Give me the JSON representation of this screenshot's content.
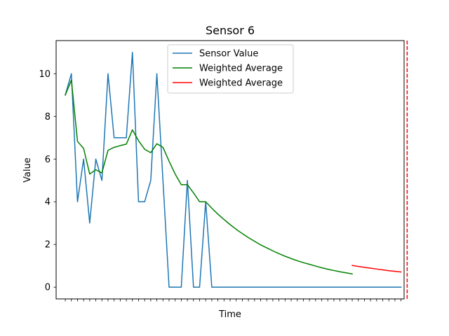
{
  "chart_data": {
    "type": "line",
    "title": "Sensor 6",
    "xlabel": "Time",
    "ylabel": "Value",
    "xlim": [
      -1.5,
      55.5
    ],
    "ylim": [
      -0.55,
      11.55
    ],
    "yticks": [
      0,
      2,
      4,
      6,
      8,
      10
    ],
    "xtick_count": 56,
    "grid": false,
    "legend_position": "top-center",
    "series": [
      {
        "name": "Sensor Value",
        "color": "#1f77b4",
        "x": [
          0,
          1,
          2,
          3,
          4,
          5,
          6,
          7,
          8,
          9,
          10,
          11,
          12,
          13,
          14,
          15,
          16,
          17,
          18,
          19,
          20,
          21,
          22,
          23,
          24,
          25,
          26,
          27,
          28,
          29,
          30,
          31,
          32,
          33,
          34,
          35,
          36,
          37,
          38,
          39,
          40,
          41,
          42,
          43,
          44,
          45,
          46,
          47,
          48,
          49,
          50,
          51,
          52,
          53,
          54,
          55
        ],
        "values": [
          9,
          10,
          4,
          6,
          3,
          6,
          5,
          10,
          7,
          7,
          7,
          11,
          4,
          4,
          5,
          10,
          5,
          0,
          0,
          0,
          5,
          0,
          0,
          4,
          0,
          0,
          0,
          0,
          0,
          0,
          0,
          0,
          0,
          0,
          0,
          0,
          0,
          0,
          0,
          0,
          0,
          0,
          0,
          0,
          0,
          0,
          0,
          0,
          0,
          0,
          0,
          0,
          0,
          0,
          0,
          0
        ]
      },
      {
        "name": "Weighted Average",
        "color": "#008000",
        "x": [
          0,
          1,
          2,
          3,
          4,
          5,
          6,
          7,
          8,
          9,
          10,
          11,
          12,
          13,
          14,
          15,
          16,
          17,
          18,
          19,
          20,
          21,
          22,
          23,
          24,
          25,
          26,
          27,
          28,
          29,
          30,
          31,
          32,
          33,
          34,
          35,
          36,
          37,
          38,
          39,
          40,
          41,
          42,
          43,
          44,
          45,
          46,
          47
        ],
        "values": [
          9.0,
          9.7,
          6.83,
          6.5,
          5.3,
          5.5,
          5.35,
          6.41,
          6.55,
          6.63,
          6.7,
          7.37,
          6.86,
          6.46,
          6.3,
          6.72,
          6.55,
          5.9,
          5.3,
          4.8,
          4.8,
          4.42,
          4.0,
          4.0,
          3.7,
          3.42,
          3.17,
          2.93,
          2.71,
          2.51,
          2.32,
          2.15,
          1.98,
          1.84,
          1.7,
          1.57,
          1.45,
          1.34,
          1.24,
          1.15,
          1.07,
          0.99,
          0.91,
          0.84,
          0.78,
          0.72,
          0.67,
          0.62
        ]
      },
      {
        "name": "Weighted Average",
        "color": "#ff0000",
        "x": [
          47,
          48,
          49,
          50,
          51,
          52,
          53,
          54,
          55
        ],
        "values": [
          1.02,
          0.97,
          0.93,
          0.89,
          0.85,
          0.81,
          0.77,
          0.74,
          0.71
        ]
      }
    ],
    "vline": {
      "x": 56,
      "color": "#ff0000",
      "style": "dashed"
    }
  }
}
